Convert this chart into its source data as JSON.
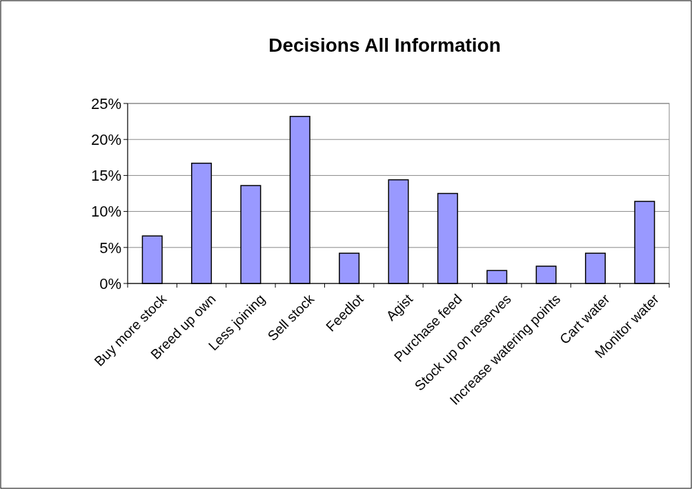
{
  "chart_data": {
    "type": "bar",
    "title": "Decisions All Information",
    "categories": [
      "Buy more stock",
      "Breed up own",
      "Less joining",
      "Sell stock",
      "Feedlot",
      "Agist",
      "Purchase feed",
      "Stock up on reserves",
      "Increase watering points",
      "Cart water",
      "Monitor water"
    ],
    "values": [
      6.6,
      16.7,
      13.6,
      23.2,
      4.2,
      14.4,
      12.5,
      1.8,
      2.4,
      4.2,
      11.4
    ],
    "color": "#9999ff",
    "ylim": [
      0,
      25
    ],
    "yticks": [
      {
        "value": 0,
        "label": "0%"
      },
      {
        "value": 5,
        "label": "5%"
      },
      {
        "value": 10,
        "label": "10%"
      },
      {
        "value": 15,
        "label": "15%"
      },
      {
        "value": 20,
        "label": "20%"
      },
      {
        "value": 25,
        "label": "25%"
      }
    ],
    "grid": "y"
  }
}
